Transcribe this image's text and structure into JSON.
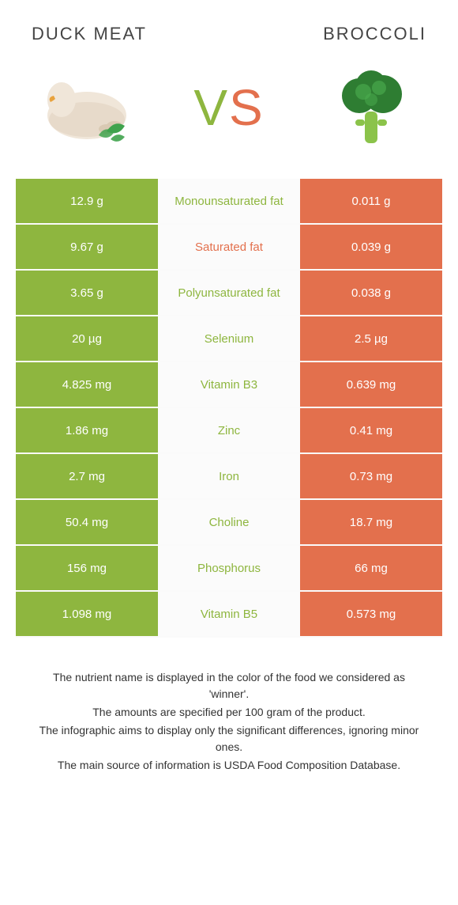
{
  "header": {
    "left_title": "DUCK MEAT",
    "right_title": "BROCCOLI"
  },
  "vs": {
    "v": "V",
    "s": "S"
  },
  "colors": {
    "duck": "#8eb63f",
    "broccoli": "#e3704d",
    "mid_bg": "#fbfbfb",
    "row_border": "#fafafa",
    "title_text": "#444444",
    "body_text": "#333333",
    "page_bg": "#ffffff",
    "broccoli_green_dark": "#2e7d32",
    "broccoli_green_light": "#4caf50",
    "broccoli_stem": "#8bc34a",
    "duck_body": "#f0e6d9",
    "duck_shadow": "#d9c9b3",
    "mint_green": "#3fa34d"
  },
  "nutrients": [
    {
      "left": "12.9 g",
      "label": "Monounsaturated fat",
      "right": "0.011 g",
      "winner": "duck"
    },
    {
      "left": "9.67 g",
      "label": "Saturated fat",
      "right": "0.039 g",
      "winner": "broccoli"
    },
    {
      "left": "3.65 g",
      "label": "Polyunsaturated fat",
      "right": "0.038 g",
      "winner": "duck"
    },
    {
      "left": "20 µg",
      "label": "Selenium",
      "right": "2.5 µg",
      "winner": "duck"
    },
    {
      "left": "4.825 mg",
      "label": "Vitamin B3",
      "right": "0.639 mg",
      "winner": "duck"
    },
    {
      "left": "1.86 mg",
      "label": "Zinc",
      "right": "0.41 mg",
      "winner": "duck"
    },
    {
      "left": "2.7 mg",
      "label": "Iron",
      "right": "0.73 mg",
      "winner": "duck"
    },
    {
      "left": "50.4 mg",
      "label": "Choline",
      "right": "18.7 mg",
      "winner": "duck"
    },
    {
      "left": "156 mg",
      "label": "Phosphorus",
      "right": "66 mg",
      "winner": "duck"
    },
    {
      "left": "1.098 mg",
      "label": "Vitamin B5",
      "right": "0.573 mg",
      "winner": "duck"
    }
  ],
  "footnotes": [
    "The nutrient name is displayed in the color of the food we considered as 'winner'.",
    "The amounts are specified per 100 gram of the product.",
    "The infographic aims to display only the significant differences, ignoring minor ones.",
    "The main source of information is USDA Food Composition Database."
  ]
}
